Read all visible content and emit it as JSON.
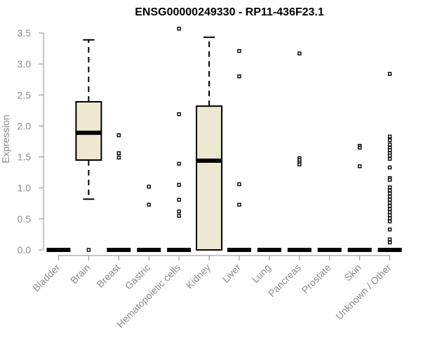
{
  "chart_data": {
    "type": "boxplot",
    "title": "ENSG00000249330 - RP11-436F23.1",
    "xlabel": "",
    "ylabel": "Expression",
    "ylim": [
      0,
      3.6
    ],
    "yticks": [
      "0.0",
      "0.5",
      "1.0",
      "1.5",
      "2.0",
      "2.5",
      "3.0",
      "3.5"
    ],
    "colors": {
      "box_fill": "#ede8d0",
      "axis": "#8c8c8c",
      "ink": "#000000"
    },
    "categories": [
      "Bladder",
      "Brain",
      "Breast",
      "Gastric",
      "Hematopoietic cells",
      "Kidney",
      "Liver",
      "Lung",
      "Pancreas",
      "Prostate",
      "Skin",
      "Unknown / Other"
    ],
    "series": [
      {
        "name": "Bladder",
        "box": null,
        "outliers": []
      },
      {
        "name": "Brain",
        "box": {
          "whisker_low": 0.82,
          "q1": 1.45,
          "median": 1.89,
          "q3": 2.39,
          "whisker_high": 3.39
        },
        "outliers": [
          0.0
        ]
      },
      {
        "name": "Breast",
        "box": null,
        "outliers": [
          1.85,
          1.56,
          1.49
        ]
      },
      {
        "name": "Gastric",
        "box": null,
        "outliers": [
          1.02,
          0.73
        ]
      },
      {
        "name": "Hematopoietic cells",
        "box": null,
        "outliers": [
          3.57,
          2.19,
          1.39,
          1.05,
          0.81,
          0.62,
          0.55
        ]
      },
      {
        "name": "Kidney",
        "box": {
          "whisker_low": 0.0,
          "q1": 0.0,
          "median": 1.44,
          "q3": 2.32,
          "whisker_high": 3.43
        },
        "outliers": []
      },
      {
        "name": "Liver",
        "box": null,
        "outliers": [
          3.21,
          2.8,
          1.06,
          0.73
        ]
      },
      {
        "name": "Lung",
        "box": null,
        "outliers": []
      },
      {
        "name": "Pancreas",
        "box": null,
        "outliers": [
          3.17,
          1.48,
          1.45,
          1.41,
          1.38
        ]
      },
      {
        "name": "Prostate",
        "box": null,
        "outliers": []
      },
      {
        "name": "Skin",
        "box": null,
        "outliers": [
          1.68,
          1.65,
          1.35
        ]
      },
      {
        "name": "Unknown / Other",
        "box": null,
        "outliers": [
          2.84,
          1.83,
          1.77,
          1.7,
          1.65,
          1.61,
          1.56,
          1.52,
          1.47,
          1.33,
          1.16,
          1.13,
          1.01,
          0.96,
          0.91,
          0.86,
          0.81,
          0.76,
          0.71,
          0.66,
          0.61,
          0.56,
          0.51,
          0.46,
          0.33,
          0.17,
          0.12
        ]
      }
    ]
  }
}
